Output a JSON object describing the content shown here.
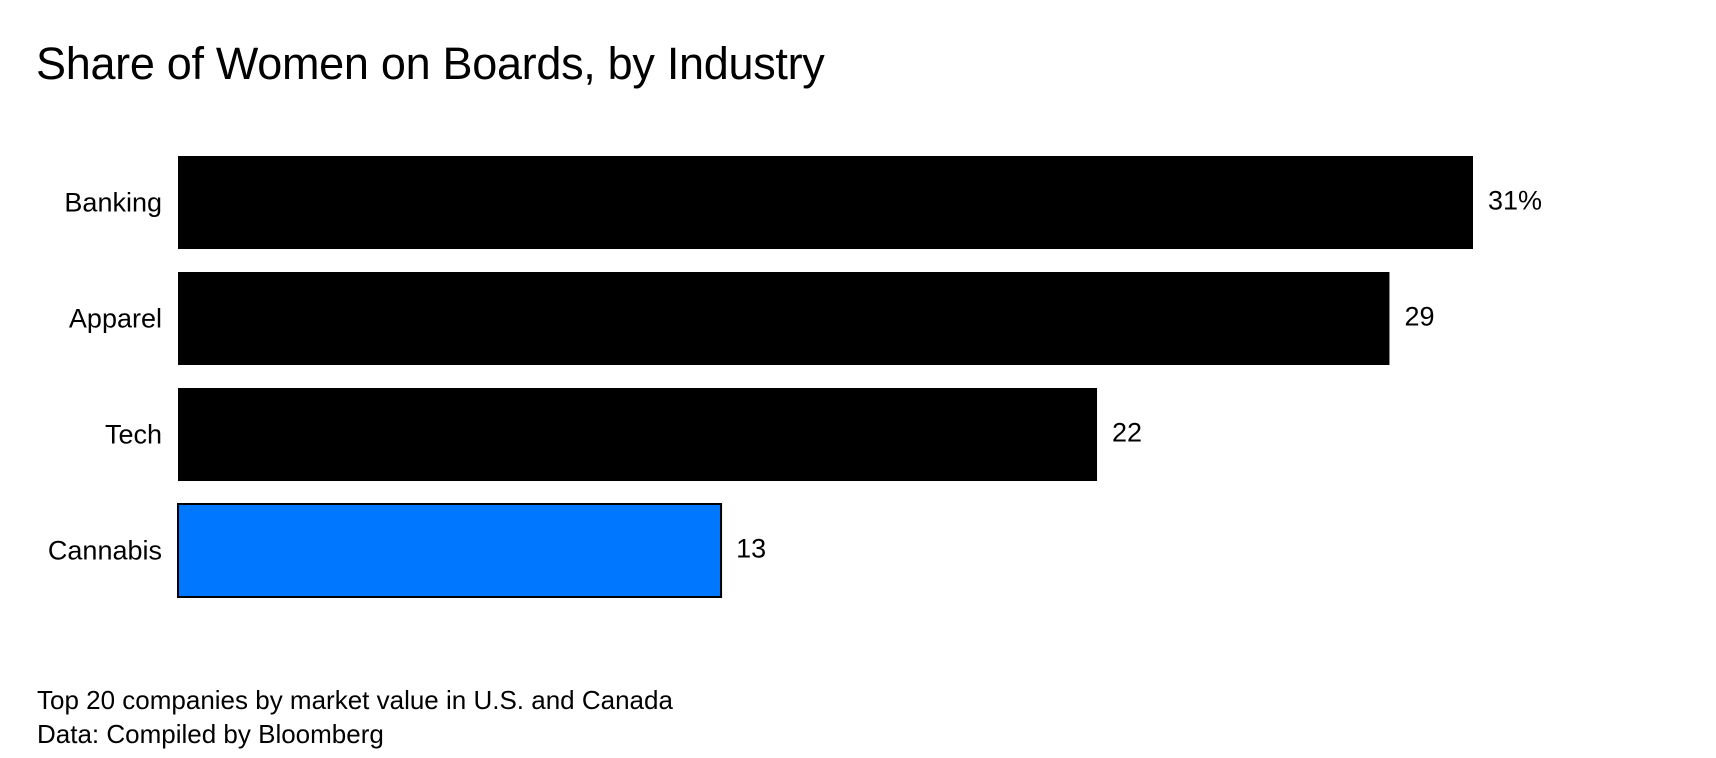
{
  "chart_data": {
    "type": "bar",
    "orientation": "horizontal",
    "title": "Share of Women on Boards, by Industry",
    "categories": [
      "Banking",
      "Apparel",
      "Tech",
      "Cannabis"
    ],
    "values": [
      31,
      29,
      22,
      13
    ],
    "value_labels": [
      "31%",
      "29",
      "22",
      "13"
    ],
    "unit": "%",
    "xlim": [
      0,
      31
    ],
    "highlight": "Cannabis",
    "colors": {
      "default": "#000000",
      "highlight": "#0077ff",
      "highlight_stroke": "#000000"
    },
    "xlabel": "",
    "ylabel": "",
    "grid": false,
    "legend": "none"
  },
  "footer": {
    "note": "Top 20 companies by market value in U.S. and Canada",
    "source": "Data: Compiled by Bloomberg"
  }
}
